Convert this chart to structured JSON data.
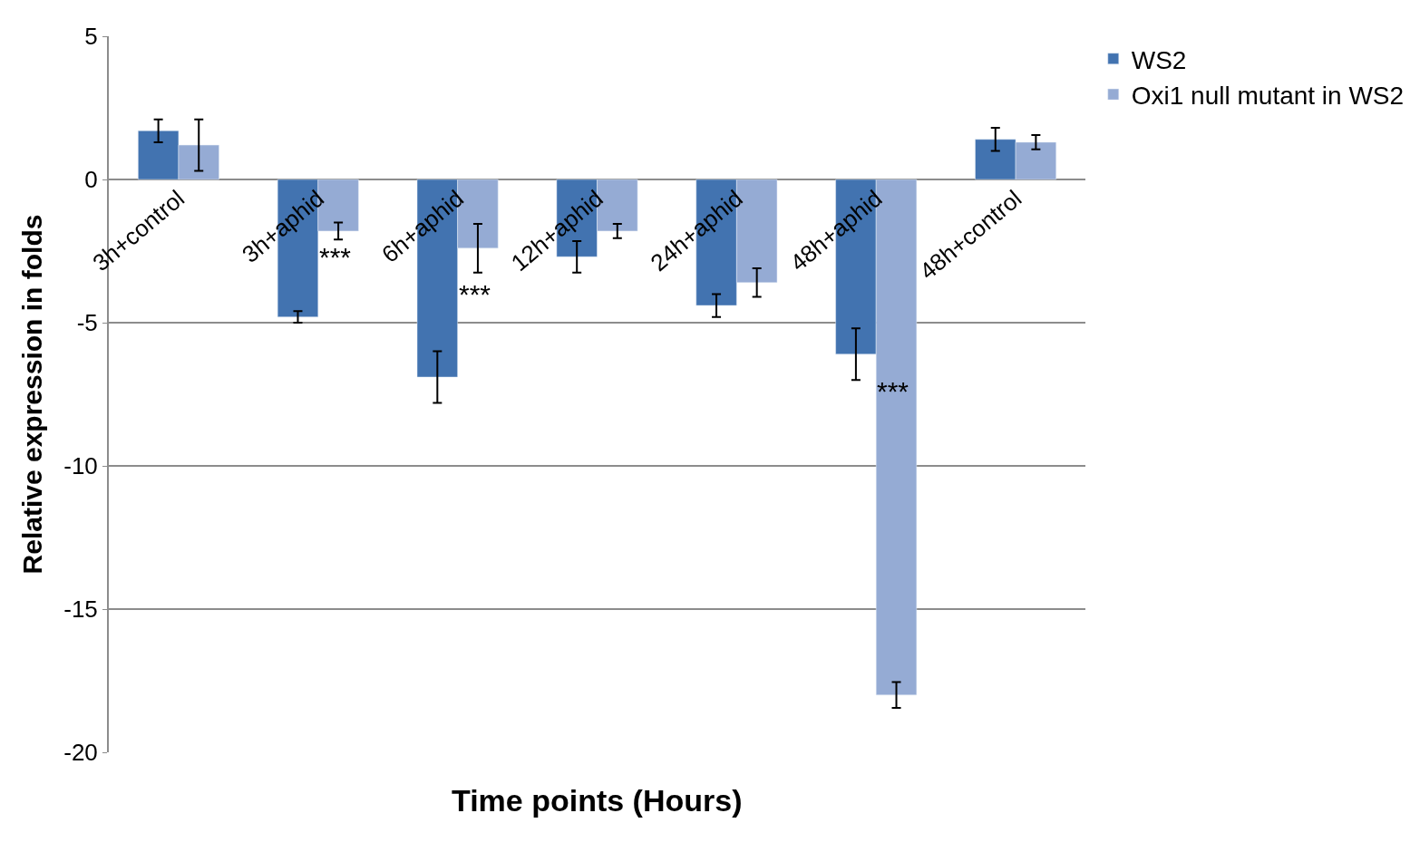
{
  "chart_data": {
    "type": "bar",
    "xlabel": "Time points (Hours)",
    "ylabel": "Relative expression in folds",
    "categories": [
      "3h+control",
      "3h+aphid",
      "6h+aphid",
      "12h+aphid",
      "24h+aphid",
      "48h+aphid",
      "48h+control"
    ],
    "series": [
      {
        "name": "WS2",
        "color": "#4273b0",
        "values": [
          1.7,
          -4.8,
          -6.9,
          -2.7,
          -4.4,
          -6.1,
          1.4
        ],
        "errors": [
          0.4,
          0.2,
          0.9,
          0.55,
          0.4,
          0.9,
          0.4
        ]
      },
      {
        "name": "Oxi1 null mutant in WS2",
        "color": "#95abd4",
        "values": [
          1.2,
          -1.8,
          -2.4,
          -1.8,
          -3.6,
          -18.0,
          1.3
        ],
        "errors": [
          0.9,
          0.3,
          0.85,
          0.25,
          0.5,
          0.45,
          0.25
        ]
      }
    ],
    "ylim": [
      -20,
      5
    ],
    "yticks": [
      -20,
      -15,
      -10,
      -5,
      0,
      5
    ],
    "grid": "y",
    "legend": "top right",
    "annotations": [
      {
        "text": "***",
        "x": "3h+aphid",
        "y": -2.7
      },
      {
        "text": "***",
        "x": "6h+aphid",
        "y": -4.0
      },
      {
        "text": "***",
        "x": "48h+aphid",
        "y": -7.4
      }
    ]
  }
}
